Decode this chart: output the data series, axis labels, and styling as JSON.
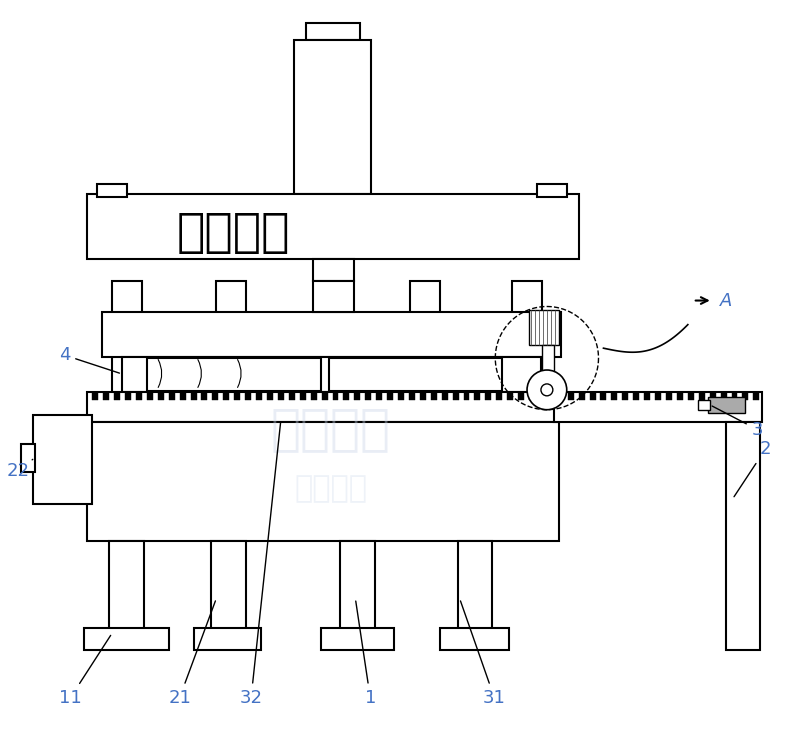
{
  "bg_color": "#ffffff",
  "line_color": "#000000",
  "label_color": "#4472c4",
  "watermark_color": "#c8d4e8",
  "title": "沃达重工",
  "label_A": "A",
  "figsize": [
    8.0,
    7.44
  ],
  "dpi": 100
}
